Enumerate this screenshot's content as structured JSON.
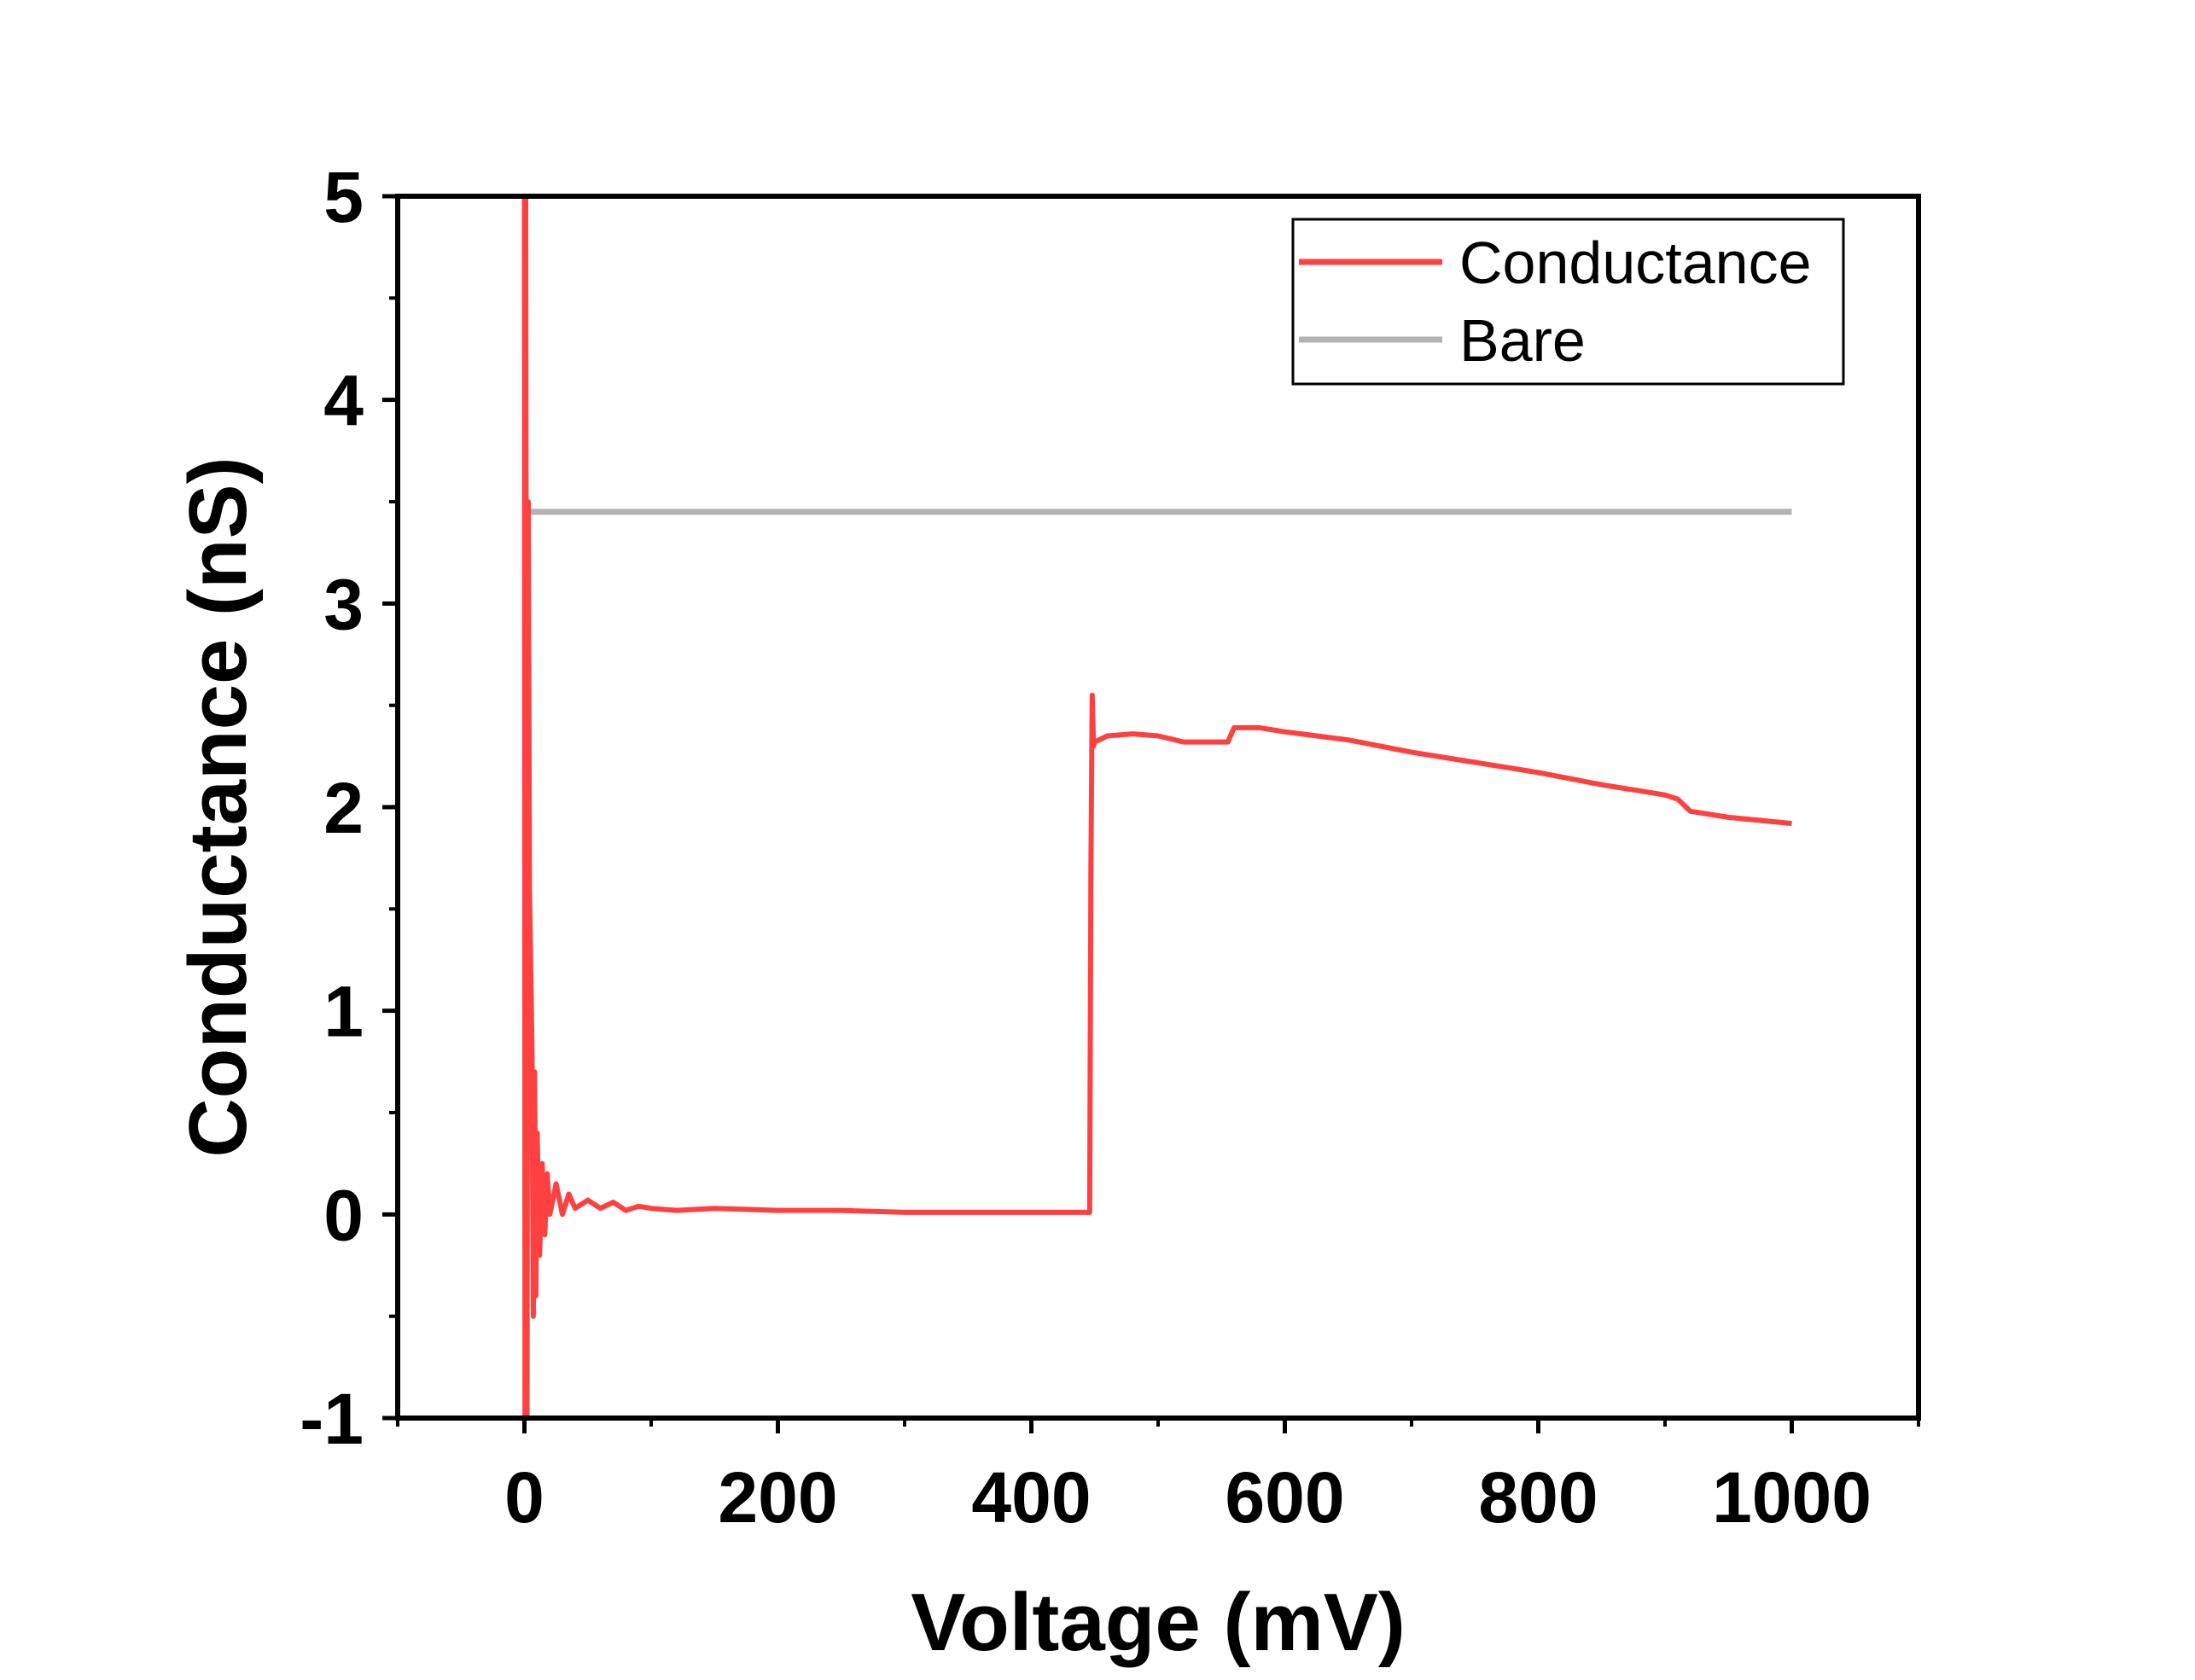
{
  "chart_data": {
    "type": "line",
    "xlabel": "Voltage (mV)",
    "ylabel": "Conductance (nS)",
    "xlim": [
      -100,
      1100
    ],
    "ylim": [
      -1,
      5
    ],
    "xticks": [
      0,
      200,
      400,
      600,
      800,
      1000
    ],
    "yticks": [
      -1,
      0,
      1,
      2,
      3,
      4,
      5
    ],
    "x_tick_labels": [
      "0",
      "200",
      "400",
      "600",
      "800",
      "1000"
    ],
    "y_tick_labels": [
      "-1",
      "0",
      "1",
      "2",
      "3",
      "4",
      "5"
    ],
    "grid": false,
    "legend_position": "top-right",
    "legend": [
      "Conductance",
      "Bare"
    ],
    "colors": {
      "conductance": "#ff4040",
      "bare": "#b3b3b3"
    },
    "series": [
      {
        "name": "Conductance",
        "x": [
          0,
          0.5,
          1,
          2,
          3,
          4,
          5,
          6,
          7,
          8,
          9,
          10,
          12,
          14,
          16,
          18,
          20,
          25,
          30,
          35,
          40,
          50,
          60,
          70,
          80,
          90,
          100,
          120,
          150,
          200,
          250,
          300,
          350,
          400,
          446,
          447,
          448,
          449,
          450,
          460,
          480,
          500,
          520,
          540,
          555,
          560,
          580,
          600,
          650,
          700,
          750,
          800,
          850,
          900,
          910,
          920,
          950,
          1000
        ],
        "y": [
          5,
          -1,
          5,
          -1,
          3.5,
          1.6,
          1.2,
          0.8,
          -0.5,
          0.7,
          -0.4,
          0.4,
          -0.2,
          0.25,
          -0.1,
          0.2,
          0.0,
          0.15,
          0.0,
          0.1,
          0.03,
          0.07,
          0.03,
          0.06,
          0.02,
          0.04,
          0.03,
          0.02,
          0.03,
          0.02,
          0.02,
          0.01,
          0.01,
          0.01,
          0.01,
          1.7,
          2.55,
          2.3,
          2.32,
          2.35,
          2.36,
          2.35,
          2.32,
          2.32,
          2.32,
          2.39,
          2.39,
          2.37,
          2.33,
          2.27,
          2.22,
          2.17,
          2.11,
          2.06,
          2.04,
          1.98,
          1.95,
          1.92
        ]
      },
      {
        "name": "Bare",
        "x": [
          0,
          1000
        ],
        "y": [
          3.45,
          3.45
        ]
      }
    ]
  }
}
